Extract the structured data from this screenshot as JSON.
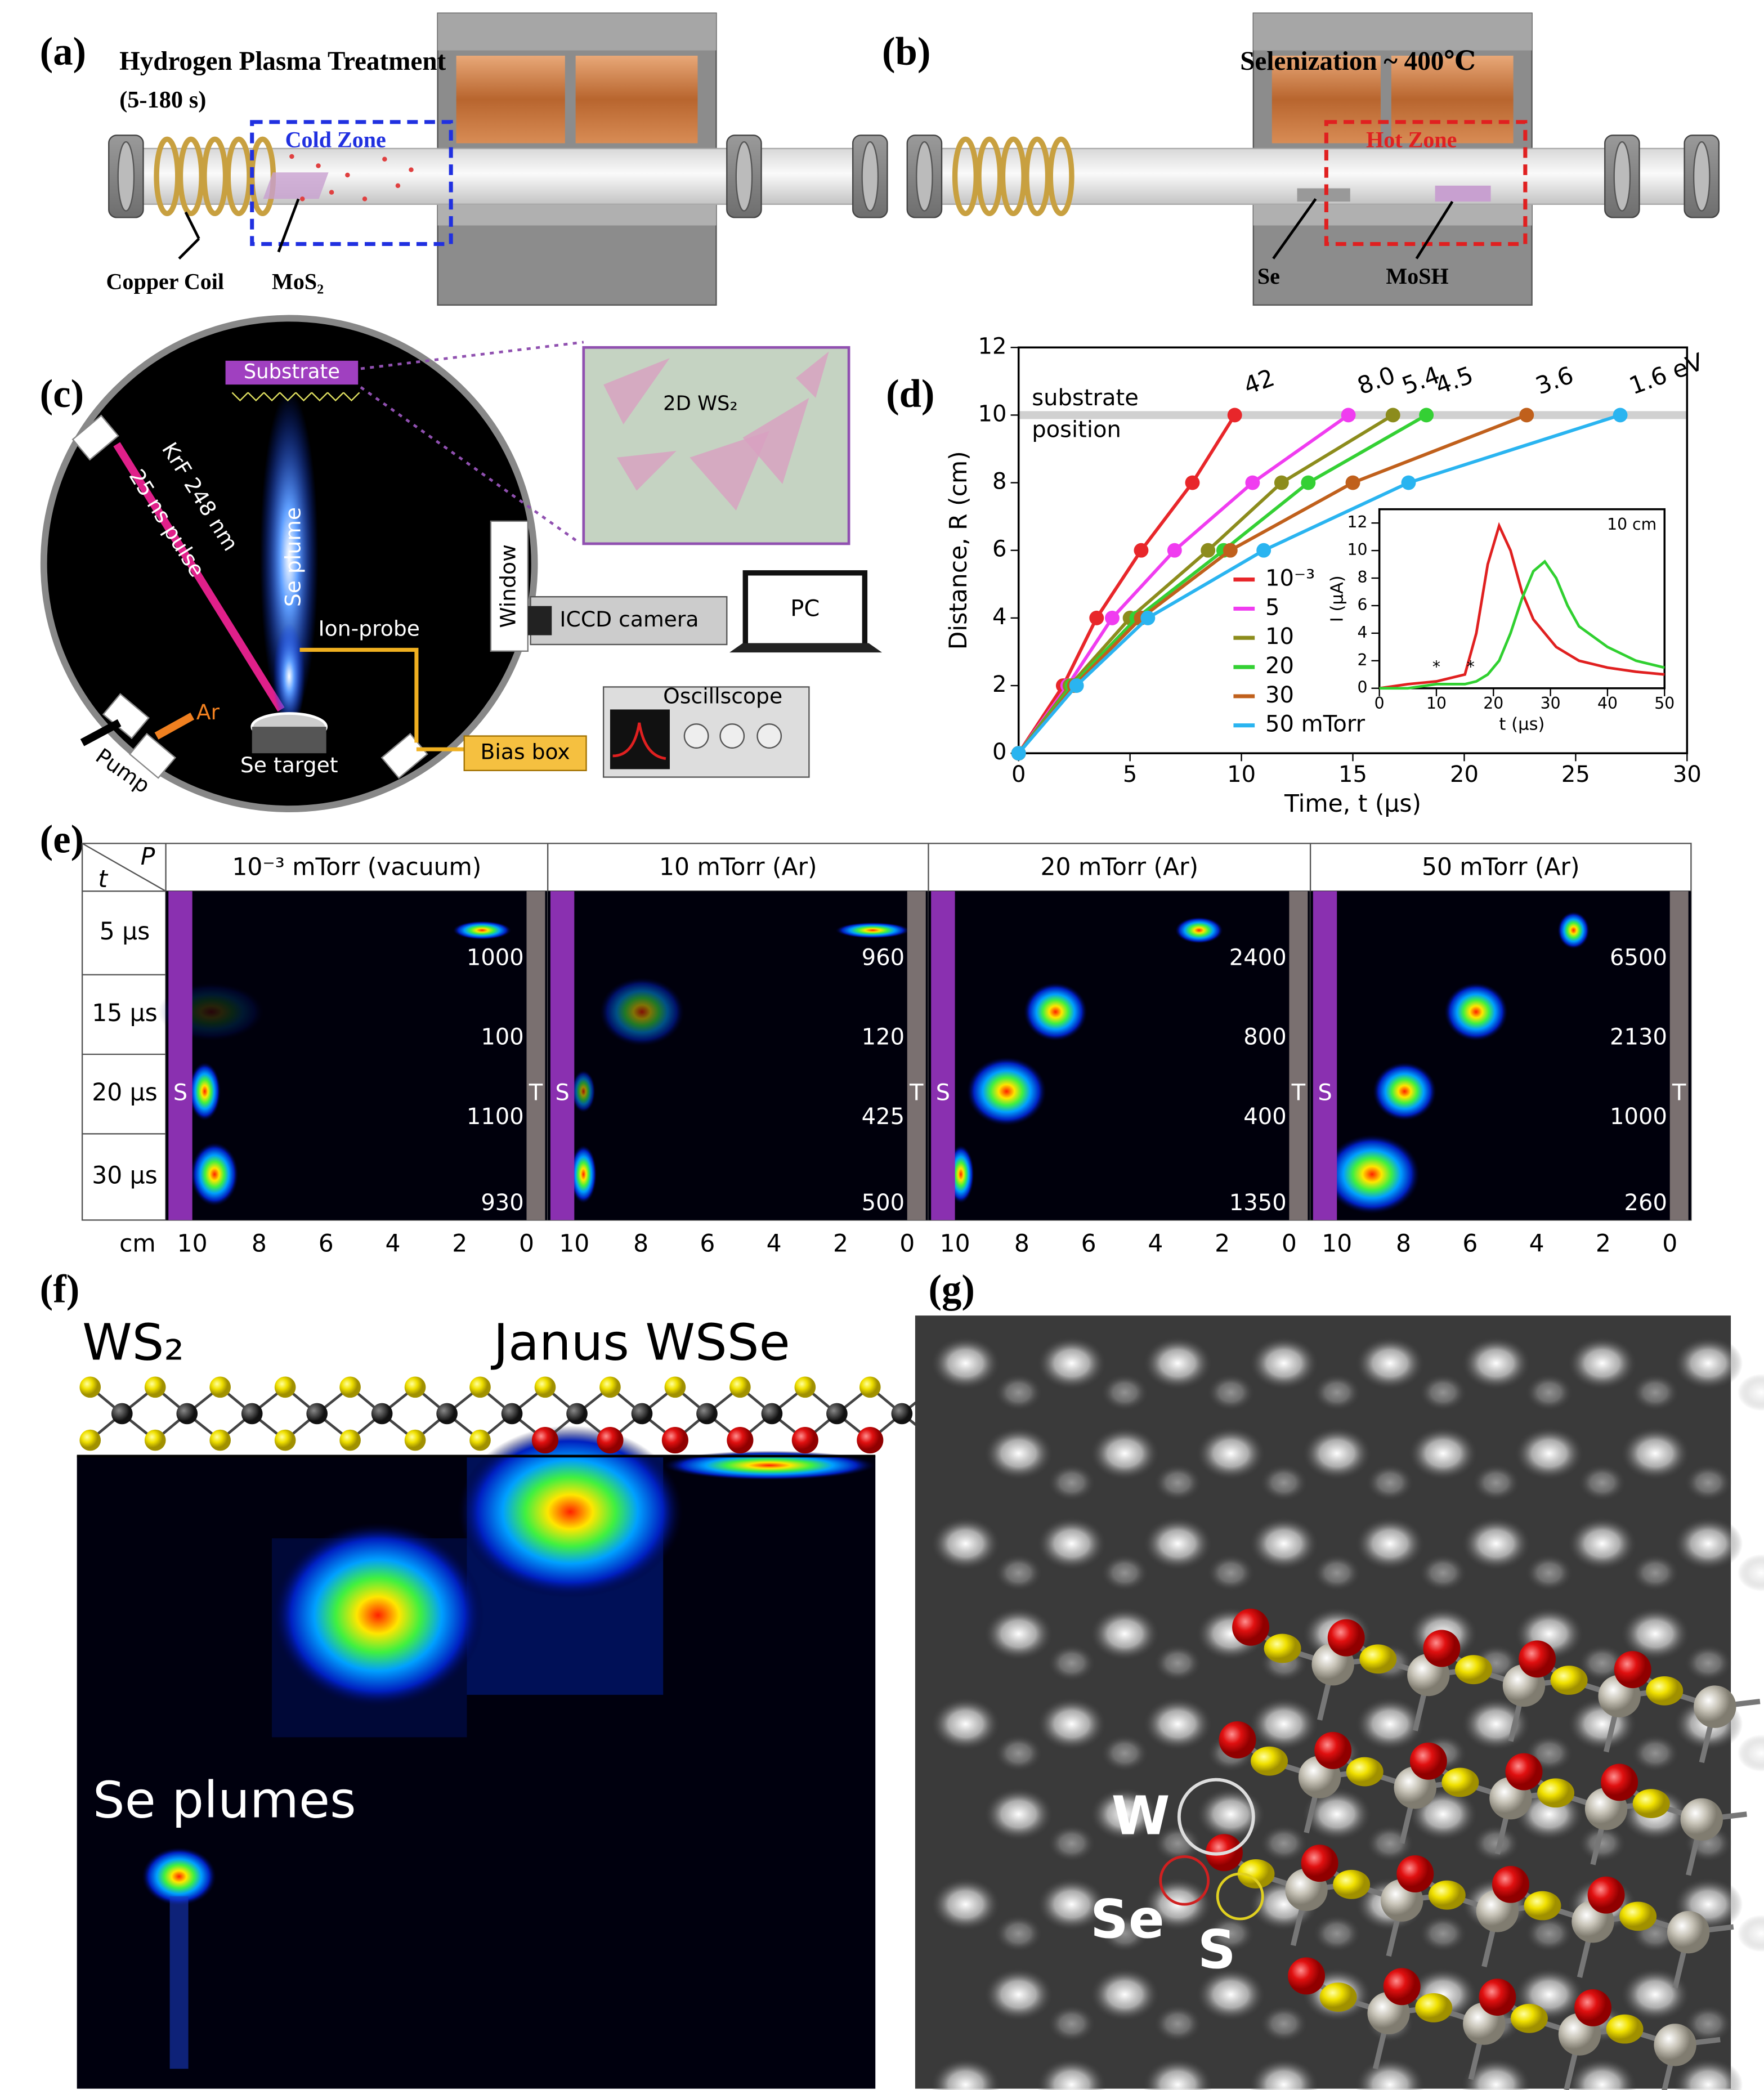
{
  "figure": {
    "panel_labels": [
      "(a)",
      "(b)",
      "(c)",
      "(d)",
      "(e)",
      "(f)",
      "(g)"
    ],
    "a": {
      "title": "Hydrogen Plasma Treatment",
      "subtitle": "(5-180 s)",
      "zone": "Cold Zone",
      "coil": "Copper Coil",
      "sample": "MoS₂"
    },
    "b": {
      "title": "Selenization ~ 400℃",
      "zone": "Hot Zone",
      "source": "Se",
      "sample": "MoSH"
    },
    "c": {
      "substrate": "Substrate",
      "film": "2D WS₂",
      "laser": "KrF 248 nm",
      "pulse": "25 ns pulse",
      "plume": "Se plume",
      "probe": "Ion-probe",
      "window": "Window",
      "camera": "ICCD camera",
      "pc": "PC",
      "scope": "Oscillscope",
      "bias": "Bias box",
      "gas": "Ar",
      "pump": "Pump",
      "target": "Se target"
    },
    "e": {
      "p": "P",
      "t": "t",
      "columns": [
        "10⁻³ mTorr (vacuum)",
        "10 mTorr (Ar)",
        "20 mTorr (Ar)",
        "50 mTorr (Ar)"
      ],
      "rows": [
        "5 μs",
        "15 μs",
        "20 μs",
        "30 μs"
      ],
      "scales": [
        [
          1000,
          960,
          2400,
          6500
        ],
        [
          100,
          120,
          800,
          2130
        ],
        [
          1100,
          425,
          400,
          1000
        ],
        [
          930,
          500,
          1350,
          260
        ]
      ],
      "substrate": "S",
      "target": "T",
      "axis_unit": "cm",
      "axis_ticks": [
        10,
        8,
        6,
        4,
        2,
        0
      ]
    },
    "f": {
      "left": "WS₂",
      "right": "Janus WSSe",
      "caption": "Se plumes"
    },
    "g": {
      "w": "W",
      "se": "Se",
      "s": "S"
    }
  },
  "chart_data": [
    {
      "type": "line",
      "xlabel": "Time, t (μs)",
      "ylabel": "Distance, R (cm)",
      "xlim": [
        0,
        30
      ],
      "ylim": [
        0,
        12
      ],
      "xticks": [
        0,
        5,
        10,
        15,
        20,
        25,
        30
      ],
      "yticks": [
        0,
        2,
        4,
        6,
        8,
        10,
        12
      ],
      "reference_line": {
        "value": 10,
        "label": [
          "substrate",
          "position"
        ]
      },
      "legend": "lower center",
      "series": [
        {
          "name": "10⁻³",
          "color": "#e8262a",
          "x": [
            0,
            2,
            3.5,
            5.5,
            7.8,
            9.7
          ],
          "values": [
            0,
            2,
            4,
            6,
            8,
            10
          ],
          "end_label": "42"
        },
        {
          "name": "5",
          "color": "#f03cf0",
          "x": [
            0,
            2.2,
            4.2,
            7,
            10.5,
            14.8
          ],
          "values": [
            0,
            2,
            4,
            6,
            8,
            10
          ],
          "end_label": "8.0"
        },
        {
          "name": "10",
          "color": "#8c8c1c",
          "x": [
            0,
            2.3,
            5,
            8.5,
            11.8,
            16.8
          ],
          "values": [
            0,
            2,
            4,
            6,
            8,
            10
          ],
          "end_label": "5.4"
        },
        {
          "name": "20",
          "color": "#34d034",
          "x": [
            0,
            2.4,
            5.3,
            9.2,
            13,
            18.3
          ],
          "values": [
            0,
            2,
            4,
            6,
            8,
            10
          ],
          "end_label": "4.5"
        },
        {
          "name": "30",
          "color": "#c0601c",
          "x": [
            0,
            2.5,
            5.5,
            9.5,
            15,
            22.8
          ],
          "values": [
            0,
            2,
            4,
            6,
            8,
            10
          ],
          "end_label": "3.6"
        },
        {
          "name": "50 mTorr",
          "color": "#2ab4f0",
          "x": [
            0,
            2.6,
            5.8,
            11,
            17.5,
            27
          ],
          "values": [
            0,
            2,
            4,
            6,
            8,
            10
          ],
          "end_label": "1.6 eV"
        }
      ]
    },
    {
      "type": "line",
      "title": "10 cm",
      "xlabel": "t (μs)",
      "ylabel": "I (μA)",
      "xlim": [
        0,
        50
      ],
      "ylim": [
        0,
        13
      ],
      "xticks": [
        0,
        10,
        20,
        30,
        40,
        50
      ],
      "yticks": [
        0,
        2,
        4,
        6,
        8,
        10,
        12
      ],
      "x": [
        0,
        5,
        10,
        15,
        17,
        19,
        21,
        23,
        25,
        27,
        29,
        31,
        33,
        35,
        40,
        45,
        50
      ],
      "series": [
        {
          "color": "#e02020",
          "values": [
            0,
            0.3,
            0.5,
            1,
            4,
            9,
            11.8,
            10,
            7,
            5,
            4,
            3,
            2.5,
            2,
            1.5,
            1.2,
            1
          ]
        },
        {
          "color": "#30d030",
          "values": [
            0,
            0,
            0.3,
            0.3,
            0.5,
            1,
            2,
            4,
            6.5,
            8.5,
            9.2,
            8,
            6,
            4.5,
            3,
            2,
            1.5
          ]
        }
      ],
      "annotations": [
        {
          "text": "*",
          "x": 10,
          "y": 1.5
        },
        {
          "text": "*",
          "x": 16,
          "y": 1.5
        }
      ]
    }
  ]
}
